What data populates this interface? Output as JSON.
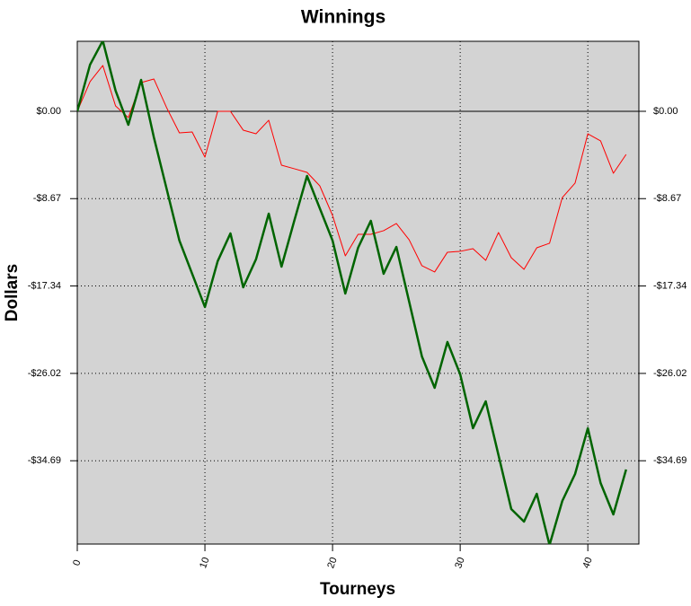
{
  "chart_data": {
    "type": "line",
    "title": "Winnings",
    "xlabel": "Tourneys",
    "ylabel": "Dollars",
    "x": [
      0,
      1,
      2,
      3,
      4,
      5,
      6,
      7,
      8,
      9,
      10,
      11,
      12,
      13,
      14,
      15,
      16,
      17,
      18,
      19,
      20,
      21,
      22,
      23,
      24,
      25,
      26,
      27,
      28,
      29,
      30,
      31,
      32,
      33,
      34,
      35,
      36,
      37,
      38,
      39,
      40,
      41,
      42,
      43
    ],
    "series": [
      {
        "color": "#ff0000",
        "width": 1,
        "values": [
          0,
          2.94,
          4.55,
          0.53,
          -0.62,
          2.85,
          3.21,
          0.36,
          -2.14,
          -2.05,
          -4.55,
          0,
          0,
          -1.87,
          -2.23,
          -0.89,
          -5.35,
          -5.7,
          -6.06,
          -7.4,
          -10.34,
          -14.35,
          -12.21,
          -12.21,
          -11.85,
          -11.14,
          -12.75,
          -15.33,
          -15.95,
          -13.99,
          -13.9,
          -13.64,
          -14.8,
          -12.03,
          -14.53,
          -15.69,
          -13.55,
          -13.1,
          -8.56,
          -7.13,
          -2.23,
          -2.94,
          -6.15,
          -4.28
        ]
      },
      {
        "color": "#006400",
        "width": 2.5,
        "values": [
          0,
          4.63,
          7.0,
          2.05,
          -1.34,
          3.12,
          -2.58,
          -7.7,
          -12.83,
          -16.13,
          -19.43,
          -14.88,
          -12.12,
          -17.47,
          -14.7,
          -10.16,
          -15.42,
          -10.87,
          -6.42,
          -9.63,
          -12.83,
          -18.09,
          -13.55,
          -10.87,
          -16.13,
          -13.46,
          -18.89,
          -24.33,
          -27.45,
          -22.9,
          -26.11,
          -31.46,
          -28.79,
          -34.13,
          -39.48,
          -40.73,
          -37.97,
          -43.05,
          -38.68,
          -36.01,
          -31.46,
          -36.9,
          -40.02,
          -35.56
        ]
      }
    ],
    "xlim": [
      0,
      44
    ],
    "xticks": [
      0,
      10,
      20,
      30,
      40
    ],
    "ylim": [
      -42.96,
      6.95
    ],
    "yticks": [
      {
        "value": 0,
        "label": "$0.00"
      },
      {
        "value": -8.67,
        "label": "-$8.67"
      },
      {
        "value": -17.34,
        "label": "-$17.34"
      },
      {
        "value": -26.02,
        "label": "-$26.02"
      },
      {
        "value": -34.69,
        "label": "-$34.69"
      }
    ],
    "grid": true,
    "background": "#d3d3d3"
  }
}
